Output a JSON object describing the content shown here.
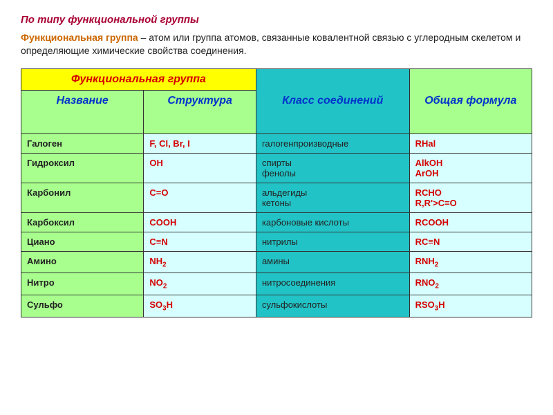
{
  "title": {
    "text": "По типу функциональной группы",
    "color": "#aa0033",
    "fontsize": 15
  },
  "definition": {
    "term": "Функциональная группа",
    "term_color": "#cc6600",
    "rest": " – атом или группа атомов, связанные ковалентной связью с углеродным скелетом и определяющие химические свойства соединения.",
    "color": "#222222",
    "fontsize": 14
  },
  "table": {
    "colwidths": [
      "24%",
      "22%",
      "30%",
      "24%"
    ],
    "header": {
      "func_group": "Функциональная группа",
      "name": "Название",
      "structure": "Структура",
      "class": "Класс соединений",
      "formula": "Общая формула",
      "bg_func": "#ffff00",
      "bg_sub": "#a8ff8e",
      "bg_class": "#22c3c6",
      "bg_formula": "#a8ff8e",
      "text_func": "#d40000",
      "text_name": "#0033cc",
      "text_struct": "#0033cc",
      "text_class": "#0033cc",
      "text_formula": "#0033cc"
    },
    "rows": [
      {
        "name": "Галоген",
        "struct_html": "F, Cl, Br, I",
        "class_html": "галогенпроизводные",
        "formula_html": "RHal"
      },
      {
        "name": "Гидроксил",
        "struct_html": "OH",
        "class_html": "спирты<br>фенолы",
        "formula_html": "AlkOH<br>ArOH"
      },
      {
        "name": "Карбонил",
        "struct_html": "C=O",
        "class_html": "альдегиды<br>кетоны",
        "formula_html": "RCHO<br>R,R'&gt;C=O"
      },
      {
        "name": "Карбоксил",
        "struct_html": "COOH",
        "class_html": "карбоновые кислоты",
        "formula_html": "RCOOH"
      },
      {
        "name": "Циано",
        "struct_html": "C≡N",
        "class_html": "нитрилы",
        "formula_html": "RC≡N"
      },
      {
        "name": "Амино",
        "struct_html": "NH<sub>2</sub>",
        "class_html": "амины",
        "formula_html": "RNH<sub>2</sub>"
      },
      {
        "name": "Нитро",
        "struct_html": "NO<sub>2</sub>",
        "class_html": "нитросоединения",
        "formula_html": "RNO<sub>2</sub>"
      },
      {
        "name": "Сульфо",
        "struct_html": "SO<sub>3</sub>H",
        "class_html": "сульфокислоты",
        "formula_html": "RSO<sub>3</sub>H"
      }
    ],
    "row_style": {
      "name_bg": "#a8ff8e",
      "name_color": "#222222",
      "struct_bg": "#d8ffff",
      "struct_color": "#d40000",
      "class_bg": "#22c3c6",
      "class_color": "#222222",
      "formula_bg": "#d8ffff",
      "formula_color": "#d40000",
      "fontsize": 13
    }
  }
}
